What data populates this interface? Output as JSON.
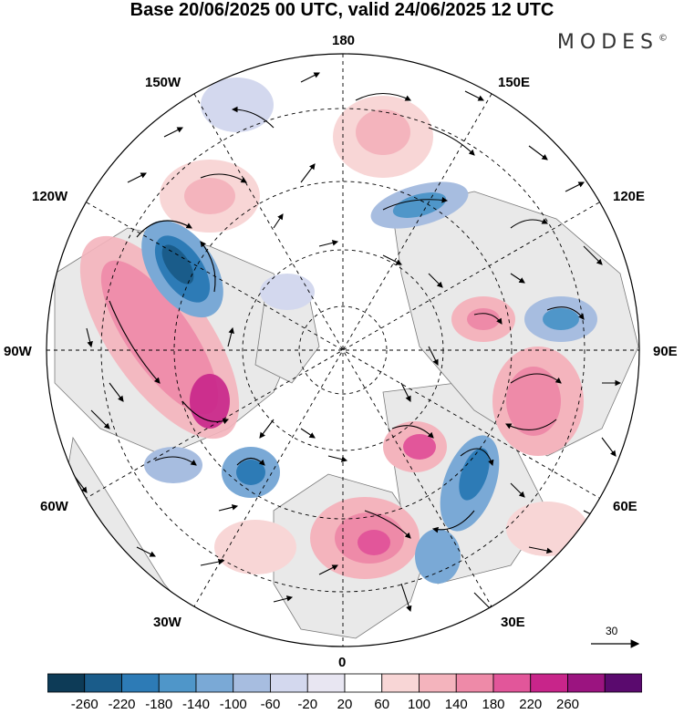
{
  "title": "Base 20/06/2025 00 UTC, valid 24/06/2025 12 UTC",
  "brand": "MODES",
  "brand_mark": "©",
  "longitude_labels": {
    "n180": "180",
    "w150": "150W",
    "e150": "150E",
    "w120": "120W",
    "e120": "120E",
    "w90": "90W",
    "e90": "90E",
    "w60": "60W",
    "e60": "60E",
    "w30": "30W",
    "e30": "30E",
    "s0": "0"
  },
  "reference_vector": {
    "label": "30",
    "magnitude": 30
  },
  "colorbar": {
    "ticks": [
      "-260",
      "-220",
      "-180",
      "-140",
      "-100",
      "-60",
      "-20",
      "20",
      "60",
      "100",
      "140",
      "180",
      "220",
      "260"
    ],
    "colors": [
      "#0d3b57",
      "#1a5c8a",
      "#2d7bb6",
      "#4f96c9",
      "#7aa9d6",
      "#a7bde0",
      "#d3d8ee",
      "#e8e6f2",
      "#ffffff",
      "#f8d6d6",
      "#f4b4bd",
      "#ee8aa8",
      "#e2569a",
      "#c8258a",
      "#9b1480",
      "#5a0a6e"
    ]
  },
  "map_legend": {
    "colors": {
      "land": "#e9e9e9",
      "ocean": "#ffffff",
      "coast": "#555555",
      "grid": "#000000",
      "arrow": "#000000"
    }
  }
}
